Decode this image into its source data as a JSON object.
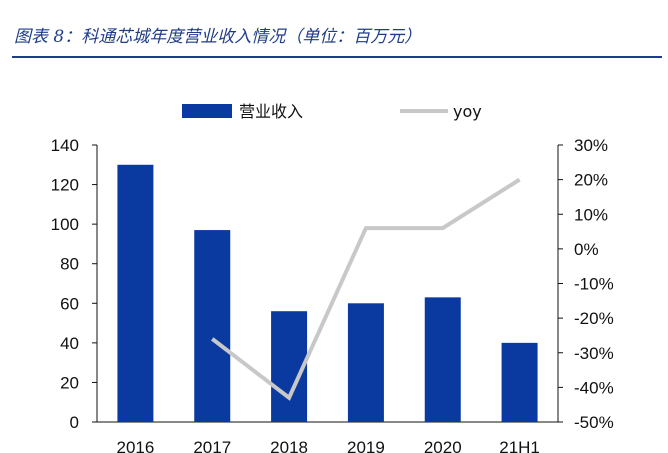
{
  "figure_title": "图表 8：科通芯城年度营业收入情况（单位：百万元）",
  "colors": {
    "title": "#1f3c88",
    "bar": "#0a3aa0",
    "line": "#c8c8c8"
  },
  "chart_data": {
    "type": "bar",
    "categories": [
      "2016",
      "2017",
      "2018",
      "2019",
      "2020",
      "21H1"
    ],
    "series": [
      {
        "name": "营业收入",
        "kind": "bar",
        "axis": "left",
        "values": [
          130,
          97,
          56,
          60,
          63,
          40
        ]
      },
      {
        "name": "yoy",
        "kind": "line",
        "axis": "right",
        "values": [
          null,
          -26,
          -43,
          6,
          6,
          20
        ]
      }
    ],
    "y_left": {
      "min": 0,
      "max": 140,
      "ticks": [
        "0",
        "20",
        "40",
        "60",
        "80",
        "100",
        "120",
        "140"
      ]
    },
    "y_right": {
      "min": -50,
      "max": 30,
      "ticks": [
        "-50%",
        "-40%",
        "-30%",
        "-20%",
        "-10%",
        "0%",
        "10%",
        "20%",
        "30%"
      ]
    },
    "legend_position": "top",
    "grid": false
  }
}
